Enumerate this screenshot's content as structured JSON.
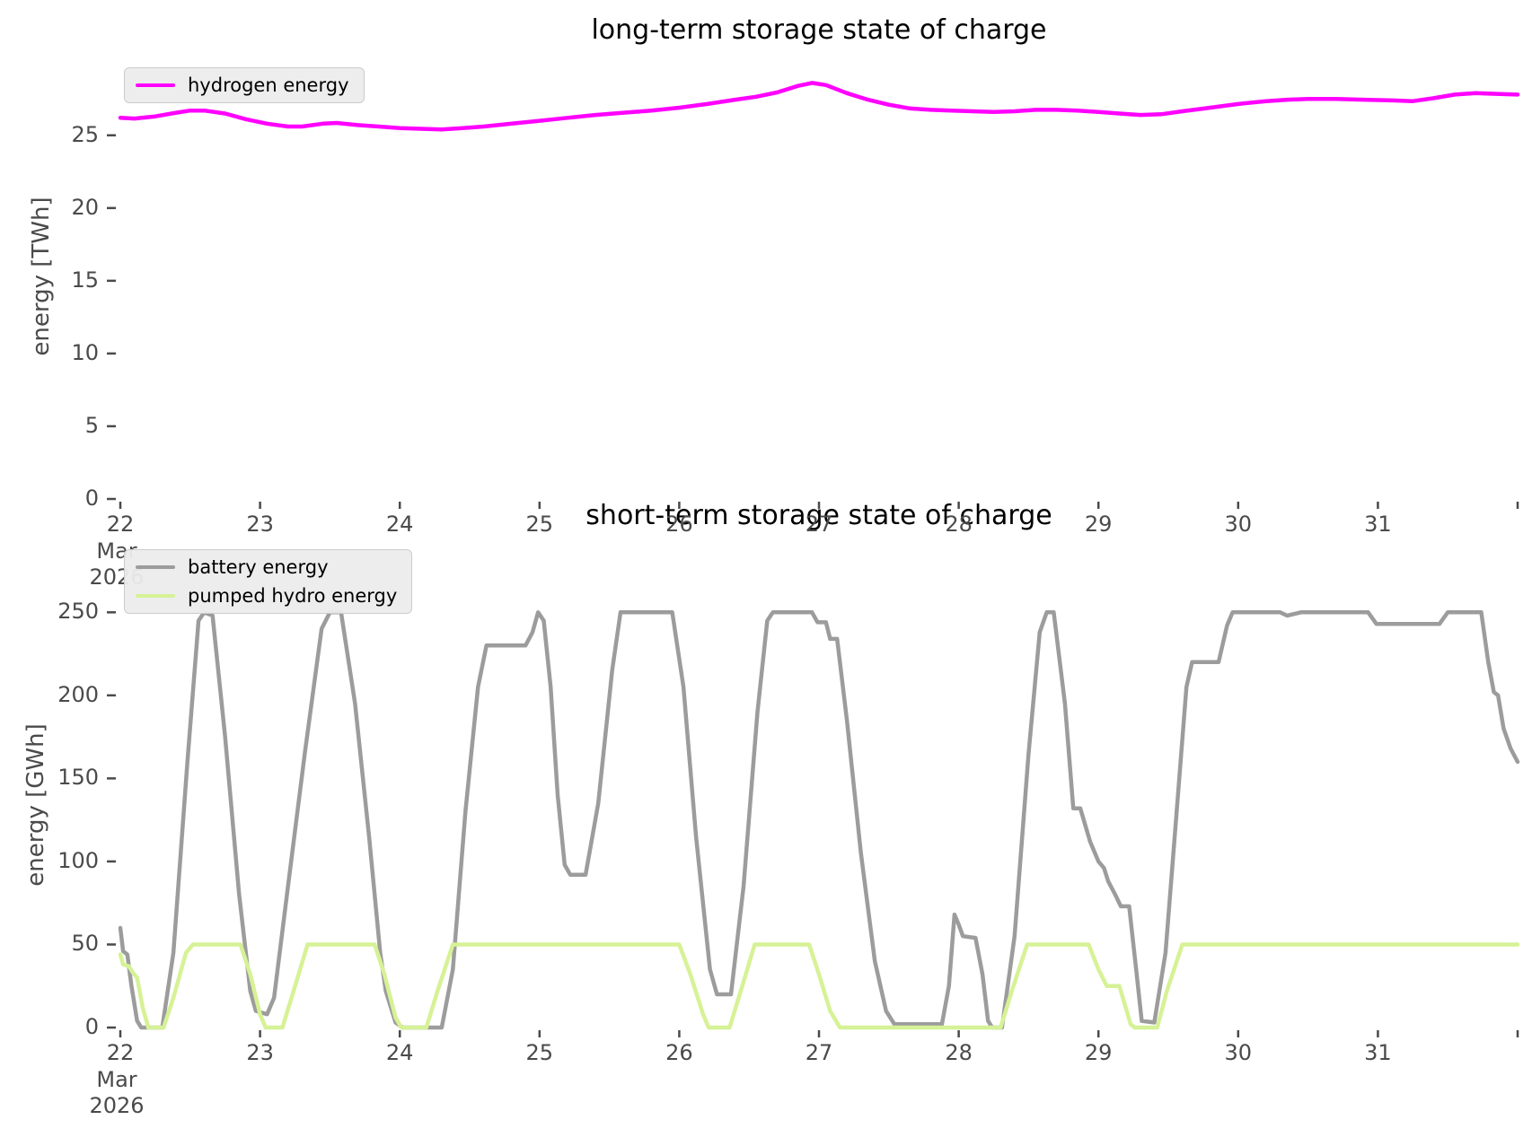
{
  "figure": {
    "background": "#ffffff",
    "tick_text_color": "#4a4a4a",
    "title_color": "#000000",
    "legend_background": "#ececec",
    "legend_border": "#cccccc"
  },
  "chart_data": [
    {
      "type": "line",
      "title": "long-term storage state of charge",
      "ylabel": "energy [TWh]",
      "xlabel": "",
      "x_axis_dates": "22-31 Mar 2026",
      "xlim": [
        22,
        32
      ],
      "ylim": [
        0,
        30.6
      ],
      "grid": false,
      "legend_position": "upper left",
      "x_tick_positions": [
        22,
        23,
        24,
        25,
        26,
        27,
        28,
        29,
        30,
        31,
        32
      ],
      "x_tick_labels": [
        "22",
        "23",
        "24",
        "25",
        "26",
        "27",
        "28",
        "29",
        "30",
        "31",
        ""
      ],
      "x_first_tick_sublabels": [
        "Mar",
        "2026"
      ],
      "y_ticks": [
        0,
        5,
        10,
        15,
        20,
        25
      ],
      "series": [
        {
          "name": "hydrogen energy",
          "color": "#ff00ff",
          "unit": "TWh",
          "points": [
            [
              22.0,
              26.2
            ],
            [
              22.1,
              26.15
            ],
            [
              22.25,
              26.3
            ],
            [
              22.4,
              26.55
            ],
            [
              22.5,
              26.7
            ],
            [
              22.6,
              26.7
            ],
            [
              22.75,
              26.5
            ],
            [
              22.9,
              26.1
            ],
            [
              23.05,
              25.8
            ],
            [
              23.2,
              25.6
            ],
            [
              23.3,
              25.6
            ],
            [
              23.45,
              25.8
            ],
            [
              23.55,
              25.85
            ],
            [
              23.7,
              25.7
            ],
            [
              23.85,
              25.6
            ],
            [
              24.0,
              25.5
            ],
            [
              24.15,
              25.45
            ],
            [
              24.3,
              25.4
            ],
            [
              24.45,
              25.5
            ],
            [
              24.6,
              25.6
            ],
            [
              24.8,
              25.8
            ],
            [
              25.0,
              26.0
            ],
            [
              25.2,
              26.2
            ],
            [
              25.4,
              26.4
            ],
            [
              25.6,
              26.55
            ],
            [
              25.8,
              26.7
            ],
            [
              26.0,
              26.9
            ],
            [
              26.2,
              27.15
            ],
            [
              26.4,
              27.45
            ],
            [
              26.55,
              27.65
            ],
            [
              26.7,
              27.95
            ],
            [
              26.85,
              28.4
            ],
            [
              26.95,
              28.6
            ],
            [
              27.05,
              28.45
            ],
            [
              27.2,
              27.9
            ],
            [
              27.35,
              27.45
            ],
            [
              27.5,
              27.1
            ],
            [
              27.65,
              26.85
            ],
            [
              27.8,
              26.75
            ],
            [
              27.95,
              26.7
            ],
            [
              28.1,
              26.65
            ],
            [
              28.25,
              26.6
            ],
            [
              28.4,
              26.65
            ],
            [
              28.55,
              26.75
            ],
            [
              28.7,
              26.75
            ],
            [
              28.85,
              26.7
            ],
            [
              29.0,
              26.6
            ],
            [
              29.15,
              26.5
            ],
            [
              29.3,
              26.4
            ],
            [
              29.45,
              26.45
            ],
            [
              29.6,
              26.65
            ],
            [
              29.8,
              26.9
            ],
            [
              30.0,
              27.15
            ],
            [
              30.2,
              27.35
            ],
            [
              30.35,
              27.45
            ],
            [
              30.5,
              27.5
            ],
            [
              30.7,
              27.5
            ],
            [
              30.9,
              27.45
            ],
            [
              31.1,
              27.4
            ],
            [
              31.25,
              27.35
            ],
            [
              31.4,
              27.55
            ],
            [
              31.55,
              27.8
            ],
            [
              31.7,
              27.9
            ],
            [
              31.85,
              27.85
            ],
            [
              32.0,
              27.8
            ]
          ]
        }
      ]
    },
    {
      "type": "line",
      "title": "short-term storage state of charge",
      "ylabel": "energy [GWh]",
      "xlabel": "",
      "x_axis_dates": "22-31 Mar 2026",
      "xlim": [
        22,
        32
      ],
      "ylim": [
        0,
        268
      ],
      "grid": false,
      "legend_position": "upper left",
      "x_tick_positions": [
        22,
        23,
        24,
        25,
        26,
        27,
        28,
        29,
        30,
        31,
        32
      ],
      "x_tick_labels": [
        "22",
        "23",
        "24",
        "25",
        "26",
        "27",
        "28",
        "29",
        "30",
        "31",
        ""
      ],
      "x_first_tick_sublabels": [
        "Mar",
        "2026"
      ],
      "y_ticks": [
        0,
        50,
        100,
        150,
        200,
        250
      ],
      "series": [
        {
          "name": "battery energy",
          "color": "#9c9c9c",
          "unit": "GWh",
          "points": [
            [
              22.0,
              60
            ],
            [
              22.02,
              46
            ],
            [
              22.05,
              44
            ],
            [
              22.08,
              25
            ],
            [
              22.12,
              4
            ],
            [
              22.15,
              0
            ],
            [
              22.3,
              0
            ],
            [
              22.38,
              45
            ],
            [
              22.48,
              160
            ],
            [
              22.56,
              245
            ],
            [
              22.6,
              250
            ],
            [
              22.66,
              248
            ],
            [
              22.75,
              175
            ],
            [
              22.85,
              80
            ],
            [
              22.93,
              22
            ],
            [
              22.97,
              10
            ],
            [
              23.05,
              8
            ],
            [
              23.1,
              18
            ],
            [
              23.2,
              85
            ],
            [
              23.32,
              165
            ],
            [
              23.44,
              240
            ],
            [
              23.5,
              250
            ],
            [
              23.58,
              250
            ],
            [
              23.68,
              195
            ],
            [
              23.78,
              115
            ],
            [
              23.86,
              45
            ],
            [
              23.9,
              22
            ],
            [
              23.97,
              3
            ],
            [
              24.02,
              0
            ],
            [
              24.3,
              0
            ],
            [
              24.38,
              35
            ],
            [
              24.47,
              130
            ],
            [
              24.56,
              205
            ],
            [
              24.62,
              230
            ],
            [
              24.9,
              230
            ],
            [
              24.95,
              238
            ],
            [
              24.99,
              250
            ],
            [
              25.03,
              245
            ],
            [
              25.08,
              205
            ],
            [
              25.13,
              140
            ],
            [
              25.18,
              98
            ],
            [
              25.22,
              92
            ],
            [
              25.33,
              92
            ],
            [
              25.42,
              135
            ],
            [
              25.52,
              215
            ],
            [
              25.58,
              250
            ],
            [
              25.95,
              250
            ],
            [
              26.03,
              205
            ],
            [
              26.12,
              115
            ],
            [
              26.22,
              35
            ],
            [
              26.27,
              20
            ],
            [
              26.37,
              20
            ],
            [
              26.46,
              85
            ],
            [
              26.56,
              190
            ],
            [
              26.63,
              245
            ],
            [
              26.67,
              250
            ],
            [
              26.95,
              250
            ],
            [
              26.99,
              244
            ],
            [
              27.05,
              244
            ],
            [
              27.08,
              234
            ],
            [
              27.13,
              234
            ],
            [
              27.2,
              185
            ],
            [
              27.3,
              105
            ],
            [
              27.4,
              40
            ],
            [
              27.48,
              10
            ],
            [
              27.54,
              2
            ],
            [
              27.88,
              2
            ],
            [
              27.93,
              25
            ],
            [
              27.97,
              68
            ],
            [
              28.0,
              62
            ],
            [
              28.03,
              55
            ],
            [
              28.12,
              54
            ],
            [
              28.17,
              32
            ],
            [
              28.21,
              4
            ],
            [
              28.24,
              0
            ],
            [
              28.31,
              0
            ],
            [
              28.4,
              55
            ],
            [
              28.5,
              165
            ],
            [
              28.58,
              238
            ],
            [
              28.63,
              250
            ],
            [
              28.68,
              250
            ],
            [
              28.76,
              195
            ],
            [
              28.82,
              132
            ],
            [
              28.87,
              132
            ],
            [
              28.94,
              112
            ],
            [
              29.0,
              100
            ],
            [
              29.04,
              96
            ],
            [
              29.07,
              88
            ],
            [
              29.12,
              80
            ],
            [
              29.16,
              73
            ],
            [
              29.22,
              73
            ],
            [
              29.27,
              35
            ],
            [
              29.31,
              4
            ],
            [
              29.4,
              3
            ],
            [
              29.48,
              45
            ],
            [
              29.56,
              130
            ],
            [
              29.63,
              205
            ],
            [
              29.67,
              220
            ],
            [
              29.86,
              220
            ],
            [
              29.92,
              242
            ],
            [
              29.96,
              250
            ],
            [
              30.3,
              250
            ],
            [
              30.35,
              248
            ],
            [
              30.45,
              250
            ],
            [
              30.93,
              250
            ],
            [
              30.99,
              243
            ],
            [
              31.44,
              243
            ],
            [
              31.5,
              250
            ],
            [
              31.74,
              250
            ],
            [
              31.79,
              220
            ],
            [
              31.83,
              202
            ],
            [
              31.86,
              200
            ],
            [
              31.9,
              180
            ],
            [
              31.95,
              168
            ],
            [
              32.0,
              160
            ]
          ]
        },
        {
          "name": "pumped hydro energy",
          "color": "#d6f296",
          "unit": "GWh",
          "points": [
            [
              22.0,
              44
            ],
            [
              22.02,
              38
            ],
            [
              22.06,
              37
            ],
            [
              22.09,
              33
            ],
            [
              22.12,
              30
            ],
            [
              22.16,
              12
            ],
            [
              22.2,
              0
            ],
            [
              22.31,
              0
            ],
            [
              22.38,
              18
            ],
            [
              22.47,
              45
            ],
            [
              22.52,
              50
            ],
            [
              22.86,
              50
            ],
            [
              22.93,
              32
            ],
            [
              23.0,
              8
            ],
            [
              23.04,
              0
            ],
            [
              23.16,
              0
            ],
            [
              23.24,
              22
            ],
            [
              23.34,
              50
            ],
            [
              23.82,
              50
            ],
            [
              23.89,
              32
            ],
            [
              23.97,
              6
            ],
            [
              24.01,
              0
            ],
            [
              24.19,
              0
            ],
            [
              24.27,
              22
            ],
            [
              24.38,
              50
            ],
            [
              26.0,
              50
            ],
            [
              26.08,
              32
            ],
            [
              26.17,
              8
            ],
            [
              26.21,
              0
            ],
            [
              26.36,
              0
            ],
            [
              26.44,
              22
            ],
            [
              26.54,
              50
            ],
            [
              26.93,
              50
            ],
            [
              27.0,
              32
            ],
            [
              27.08,
              10
            ],
            [
              27.15,
              0
            ],
            [
              28.3,
              0
            ],
            [
              28.38,
              22
            ],
            [
              28.49,
              50
            ],
            [
              28.93,
              50
            ],
            [
              29.0,
              35
            ],
            [
              29.06,
              25
            ],
            [
              29.15,
              25
            ],
            [
              29.23,
              2
            ],
            [
              29.26,
              0
            ],
            [
              29.42,
              0
            ],
            [
              29.49,
              22
            ],
            [
              29.6,
              50
            ],
            [
              32.0,
              50
            ]
          ]
        }
      ]
    }
  ]
}
